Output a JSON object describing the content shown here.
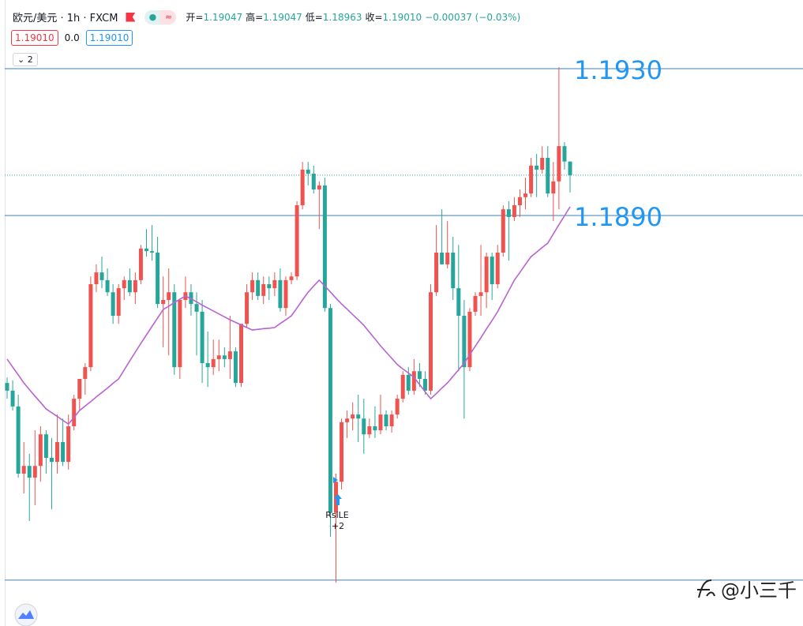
{
  "header": {
    "title": "欧元/美元 · 1h · FXCM",
    "ohlc": [
      {
        "label": "开=",
        "value": "1.19047"
      },
      {
        "label": "高=",
        "value": "1.19047"
      },
      {
        "label": "低=",
        "value": "1.18963"
      },
      {
        "label": "收=",
        "value": "1.19010"
      }
    ],
    "change": "−0.00037 (−0.03%)"
  },
  "indicator": {
    "values": [
      "1.19010",
      "0.0"
    ],
    "count": "2"
  },
  "watermark": "@小三千",
  "chart_data": {
    "type": "candlestick",
    "up_color": "#ef5350",
    "down_color": "#26a69a",
    "ma_color": "#b963d2",
    "level_color": "#3d7fb3",
    "level_label_color": "#2196f3",
    "ylim": [
      1.17782,
      1.19487
    ],
    "levels": [
      {
        "value": 1.193,
        "label": "1.1930"
      },
      {
        "value": 1.189,
        "label": "1.1890"
      },
      {
        "value": 1.17907
      }
    ],
    "last_price": {
      "value": 1.1901,
      "label": "1.19010"
    },
    "annotation": {
      "text": "RsiLE",
      "label": "+2"
    },
    "open": [
      1.18444,
      1.18423,
      1.1838,
      1.18197,
      1.18218,
      1.18186,
      1.18218,
      1.18304,
      1.1824,
      1.18229,
      1.18283,
      1.18229,
      1.18326,
      1.18401,
      1.18455,
      1.18487,
      1.18713,
      1.18745,
      1.18724,
      1.18691,
      1.18627,
      1.18702,
      1.18724,
      1.18691,
      1.18724,
      1.1881,
      1.18803,
      1.18799,
      1.18659,
      1.1867,
      1.18691,
      1.18487,
      1.1867,
      1.18691,
      1.18659,
      1.18638,
      1.18498,
      1.18487,
      1.18509,
      1.18519,
      1.18509,
      1.1853,
      1.18444,
      1.18605,
      1.18691,
      1.18724,
      1.18681,
      1.18713,
      1.18702,
      1.18724,
      1.18648,
      1.18724,
      1.18734,
      1.18928,
      1.19025,
      1.19014,
      1.18971,
      1.18982,
      1.18648,
      1.1809,
      1.18175,
      1.18337,
      1.18347,
      1.18358,
      1.18347,
      1.18304,
      1.18326,
      1.18315,
      1.18358,
      1.18326,
      1.18358,
      1.18401,
      1.18466,
      1.18423,
      1.18476,
      1.18455,
      1.18423,
      1.18691,
      1.18799,
      1.18767,
      1.18799,
      1.18702,
      1.18627,
      1.18487,
      1.18638,
      1.18681,
      1.18691,
      1.18788,
      1.18713,
      1.18799,
      1.18917,
      1.18896,
      1.18928,
      1.1895,
      1.1896,
      1.19036,
      1.19025,
      1.19057,
      1.1896,
      1.18993,
      1.19089,
      1.19047
    ],
    "high": [
      1.18459,
      1.18451,
      1.18412,
      1.18283,
      1.18251,
      1.18315,
      1.18326,
      1.18315,
      1.18294,
      1.18358,
      1.18347,
      1.18358,
      1.18412,
      1.18455,
      1.18498,
      1.18734,
      1.18767,
      1.18788,
      1.18756,
      1.18713,
      1.18713,
      1.18734,
      1.18756,
      1.18745,
      1.1882,
      1.18863,
      1.18874,
      1.18842,
      1.18734,
      1.18756,
      1.18713,
      1.1867,
      1.18734,
      1.18713,
      1.18691,
      1.1867,
      1.18584,
      1.18562,
      1.18562,
      1.18541,
      1.18627,
      1.18541,
      1.18605,
      1.18713,
      1.18745,
      1.18745,
      1.18734,
      1.18734,
      1.18745,
      1.18756,
      1.18734,
      1.18745,
      1.18939,
      1.19046,
      1.19046,
      1.19036,
      1.18993,
      1.19003,
      1.18659,
      1.18197,
      1.18347,
      1.18369,
      1.18391,
      1.18412,
      1.18401,
      1.18347,
      1.1838,
      1.18412,
      1.18369,
      1.18369,
      1.18412,
      1.18476,
      1.18487,
      1.18509,
      1.18498,
      1.18476,
      1.18713,
      1.18874,
      1.18917,
      1.18885,
      1.18842,
      1.1882,
      1.1867,
      1.18648,
      1.18691,
      1.1882,
      1.18799,
      1.18799,
      1.1882,
      1.18928,
      1.18939,
      1.1895,
      1.18971,
      1.19003,
      1.19057,
      1.19068,
      1.19089,
      1.19089,
      1.19046,
      1.19304,
      1.191,
      1.19047
    ],
    "low": [
      1.18401,
      1.18369,
      1.18186,
      1.18143,
      1.18068,
      1.18111,
      1.18175,
      1.18197,
      1.181,
      1.18197,
      1.18218,
      1.18208,
      1.18315,
      1.18369,
      1.18412,
      1.18476,
      1.18691,
      1.18702,
      1.18681,
      1.18605,
      1.18605,
      1.1867,
      1.18681,
      1.18659,
      1.18713,
      1.18788,
      1.18777,
      1.18648,
      1.18541,
      1.18519,
      1.18466,
      1.18455,
      1.18648,
      1.18627,
      1.18519,
      1.18444,
      1.18433,
      1.18466,
      1.18476,
      1.18487,
      1.18455,
      1.18433,
      1.18433,
      1.18595,
      1.1867,
      1.1867,
      1.18659,
      1.1867,
      1.18681,
      1.18638,
      1.18627,
      1.18713,
      1.18724,
      1.18917,
      1.18982,
      1.1896,
      1.18863,
      1.18638,
      1.18025,
      1.179,
      1.18154,
      1.18294,
      1.18315,
      1.18283,
      1.18251,
      1.18294,
      1.18294,
      1.18304,
      1.18315,
      1.18309,
      1.18347,
      1.18391,
      1.18412,
      1.18412,
      1.18433,
      1.18412,
      1.18412,
      1.18681,
      1.18767,
      1.18756,
      1.1867,
      1.18476,
      1.18347,
      1.18476,
      1.18627,
      1.18627,
      1.18648,
      1.1867,
      1.18702,
      1.18788,
      1.18777,
      1.18885,
      1.18896,
      1.18917,
      1.1895,
      1.1895,
      1.19014,
      1.1895,
      1.18885,
      1.18917,
      1.19025,
      1.18963
    ],
    "close": [
      1.18423,
      1.1838,
      1.18197,
      1.18218,
      1.18186,
      1.18218,
      1.18304,
      1.1824,
      1.18229,
      1.18283,
      1.18229,
      1.18326,
      1.18401,
      1.18455,
      1.18487,
      1.18713,
      1.18745,
      1.18724,
      1.18691,
      1.18627,
      1.18702,
      1.18724,
      1.18691,
      1.18724,
      1.1881,
      1.18803,
      1.18799,
      1.18659,
      1.1867,
      1.18691,
      1.18487,
      1.1867,
      1.18691,
      1.18659,
      1.18638,
      1.18498,
      1.18487,
      1.18509,
      1.18519,
      1.18509,
      1.1853,
      1.18444,
      1.18605,
      1.18691,
      1.18724,
      1.18681,
      1.18713,
      1.18702,
      1.18724,
      1.18648,
      1.18724,
      1.18734,
      1.18928,
      1.19025,
      1.19014,
      1.18971,
      1.18982,
      1.18648,
      1.1809,
      1.18175,
      1.18337,
      1.18347,
      1.18358,
      1.18347,
      1.18304,
      1.18326,
      1.18315,
      1.18358,
      1.18326,
      1.18358,
      1.18401,
      1.18466,
      1.18423,
      1.18476,
      1.18455,
      1.18423,
      1.18691,
      1.18799,
      1.18767,
      1.18799,
      1.18702,
      1.18627,
      1.18487,
      1.18638,
      1.18681,
      1.18691,
      1.18788,
      1.18713,
      1.18799,
      1.18917,
      1.18896,
      1.18928,
      1.1895,
      1.1896,
      1.19036,
      1.19025,
      1.19057,
      1.1896,
      1.18993,
      1.19089,
      1.19047,
      1.1901
    ],
    "ma": [
      1.18509,
      1.18487,
      1.18466,
      1.18444,
      1.18426,
      1.18408,
      1.18391,
      1.18373,
      1.18363,
      1.18353,
      1.18342,
      1.18332,
      1.1835,
      1.18369,
      1.18381,
      1.18393,
      1.18406,
      1.18418,
      1.1843,
      1.18443,
      1.18455,
      1.18479,
      1.18504,
      1.18528,
      1.18552,
      1.18575,
      1.18598,
      1.18621,
      1.18644,
      1.18653,
      1.18663,
      1.18672,
      1.18681,
      1.18673,
      1.18665,
      1.18656,
      1.18648,
      1.1864,
      1.18632,
      1.18624,
      1.18616,
      1.18609,
      1.18602,
      1.18595,
      1.18588,
      1.1859,
      1.18592,
      1.18593,
      1.18595,
      1.18606,
      1.18616,
      1.18627,
      1.18648,
      1.1867,
      1.18691,
      1.18708,
      1.18724,
      1.18708,
      1.18692,
      1.18675,
      1.18659,
      1.18645,
      1.1863,
      1.18616,
      1.18601,
      1.18582,
      1.18564,
      1.18545,
      1.18528,
      1.18511,
      1.18494,
      1.18482,
      1.18471,
      1.18459,
      1.1844,
      1.1842,
      1.18401,
      1.18415,
      1.1843,
      1.18444,
      1.18462,
      1.1848,
      1.18498,
      1.18521,
      1.18544,
      1.18567,
      1.18591,
      1.18614,
      1.18638,
      1.18667,
      1.18695,
      1.18724,
      1.18745,
      1.18767,
      1.18788,
      1.188,
      1.18813,
      1.18825,
      1.1885,
      1.18875,
      1.18899,
      1.18924
    ]
  }
}
